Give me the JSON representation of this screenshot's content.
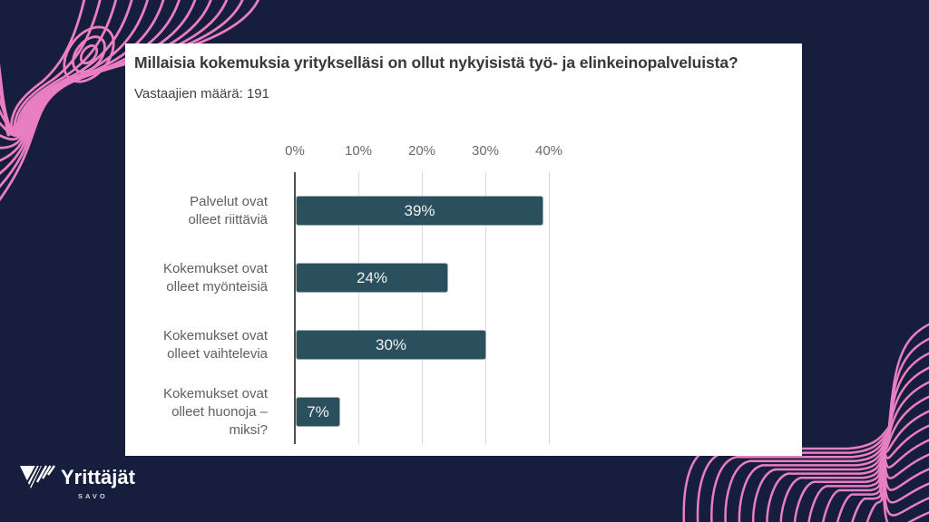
{
  "theme": {
    "navy": "#171d3c",
    "pink": "#e97fc2",
    "card_bg": "#ffffff",
    "bar_color": "#2a505e",
    "axis_color": "#4f4f4f",
    "grid_color": "#d9d9d9"
  },
  "chart_data": {
    "type": "bar",
    "orientation": "horizontal",
    "title": "Millaisia kokemuksia yritykselläsi on ollut nykyisistä työ- ja elinkeinopalveluista?",
    "subtitle": "Vastaajien määrä: 191",
    "respondents": 191,
    "categories": [
      "Palvelut ovat olleet riittäviä",
      "Kokemukset ovat olleet myönteisiä",
      "Kokemukset ovat olleet vaihtelevia",
      "Kokemukset ovat olleet huonoja – miksi?"
    ],
    "category_lines": [
      [
        "Palvelut ovat",
        "olleet riittäviä"
      ],
      [
        "Kokemukset ovat",
        "olleet myönteisiä"
      ],
      [
        "Kokemukset ovat",
        "olleet vaihtelevia"
      ],
      [
        "Kokemukset ovat",
        "olleet huonoja –",
        "miksi?"
      ]
    ],
    "values": [
      39,
      24,
      30,
      7
    ],
    "value_labels": [
      "39%",
      "24%",
      "30%",
      "7%"
    ],
    "x_ticks": [
      "0%",
      "10%",
      "20%",
      "30%",
      "40%"
    ],
    "x_tick_values": [
      0,
      10,
      20,
      30,
      40
    ],
    "xlim": [
      0,
      41
    ],
    "grid": true,
    "unit": "%",
    "legend": null
  },
  "logo": {
    "brand": "Yrittäjät",
    "region": "SAVO"
  }
}
